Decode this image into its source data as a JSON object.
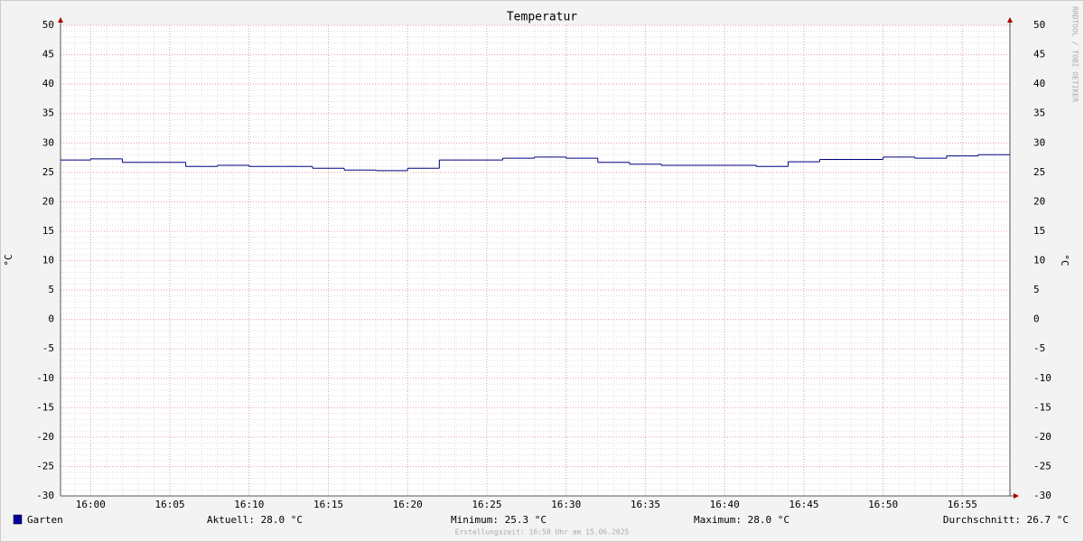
{
  "chart_data": {
    "type": "step-line",
    "title": "Temperatur",
    "y_label": "°C",
    "y2_label": "°C",
    "watermark": "RRDTOOL / TOBI OETIKER",
    "x": [
      958,
      960,
      962,
      964,
      966,
      968,
      970,
      972,
      974,
      976,
      978,
      980,
      982,
      984,
      986,
      988,
      990,
      992,
      994,
      996,
      998,
      1000,
      1002,
      1004,
      1006,
      1008,
      1010,
      1012,
      1014,
      1016
    ],
    "series": [
      {
        "name": "Garten",
        "color": "#000080",
        "values": [
          27.1,
          27.3,
          26.7,
          26.7,
          26.0,
          26.2,
          26.0,
          26.0,
          25.7,
          25.4,
          25.3,
          25.7,
          27.1,
          27.1,
          27.4,
          27.6,
          27.4,
          26.7,
          26.4,
          26.2,
          26.2,
          26.2,
          26.0,
          26.8,
          27.2,
          27.2,
          27.6,
          27.4,
          27.8,
          28.0
        ]
      }
    ],
    "legend_color": "#0000a0",
    "xlim": [
      958.1,
      1018
    ],
    "xticks": [
      {
        "value": 960,
        "label": "16:00"
      },
      {
        "value": 965,
        "label": "16:05"
      },
      {
        "value": 970,
        "label": "16:10"
      },
      {
        "value": 975,
        "label": "16:15"
      },
      {
        "value": 980,
        "label": "16:20"
      },
      {
        "value": 985,
        "label": "16:25"
      },
      {
        "value": 990,
        "label": "16:30"
      },
      {
        "value": 995,
        "label": "16:35"
      },
      {
        "value": 1000,
        "label": "16:40"
      },
      {
        "value": 1005,
        "label": "16:45"
      },
      {
        "value": 1010,
        "label": "16:50"
      },
      {
        "value": 1015,
        "label": "16:55"
      }
    ],
    "ylim": [
      -30,
      50
    ],
    "yticks": [
      -30,
      -25,
      -20,
      -15,
      -10,
      -5,
      0,
      5,
      10,
      15,
      20,
      25,
      30,
      35,
      40,
      45,
      50
    ],
    "grid": true,
    "stats": [
      "Aktuell: 28.0 °C",
      "Minimum: 25.3 °C",
      "Maximum: 28.0 °C",
      "Durchschnitt: 26.7 °C"
    ],
    "footer": "Erstellungszeit: 16:58 Uhr am 15.06.2025"
  }
}
